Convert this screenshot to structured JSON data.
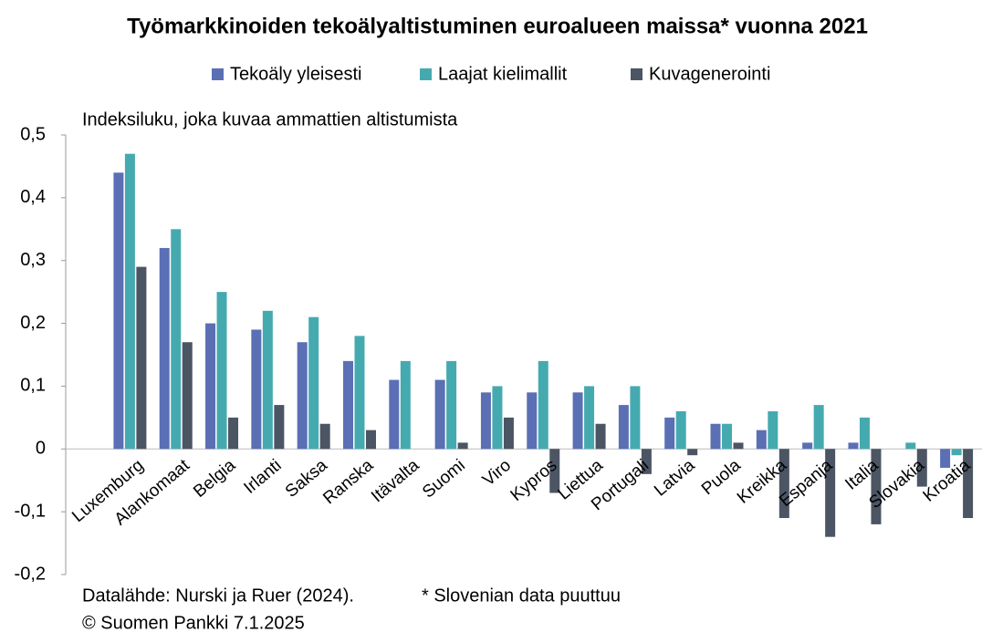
{
  "chart_data": {
    "type": "bar",
    "title": "Työmarkkinoiden tekoälyaltistuminen euroalueen maissa* vuonna 2021",
    "ylabel": "Indeksiluku, joka kuvaa ammattien altistumista",
    "notes": {
      "source": "Datalähde: Nurski ja Ruer (2024).",
      "footnote": "* Slovenian data puuttuu",
      "copyright": "© Suomen Pankki 7.1.2025"
    },
    "categories": [
      "Luxemburg",
      "Alankomaat",
      "Belgia",
      "Irlanti",
      "Saksa",
      "Ranska",
      "Itävalta",
      "Suomi",
      "Viro",
      "Kypros",
      "Liettua",
      "Portugali",
      "Latvia",
      "Puola",
      "Kreikka",
      "Espanja",
      "Italia",
      "Slovakia",
      "Kroatia"
    ],
    "series": [
      {
        "name": "Tekoäly yleisesti",
        "color": "#5b6fb5",
        "values": [
          0.44,
          0.32,
          0.2,
          0.19,
          0.17,
          0.14,
          0.11,
          0.11,
          0.09,
          0.09,
          0.09,
          0.07,
          0.05,
          0.04,
          0.03,
          0.01,
          0.01,
          0.0,
          -0.03
        ]
      },
      {
        "name": "Laajat kielimallit",
        "color": "#45aab0",
        "values": [
          0.47,
          0.35,
          0.25,
          0.22,
          0.21,
          0.18,
          0.14,
          0.14,
          0.1,
          0.14,
          0.1,
          0.1,
          0.06,
          0.04,
          0.06,
          0.07,
          0.05,
          0.01,
          -0.01
        ]
      },
      {
        "name": "Kuvagenerointi",
        "color": "#4c5563",
        "values": [
          0.29,
          0.17,
          0.05,
          0.07,
          0.04,
          0.03,
          0.0,
          0.01,
          0.05,
          -0.07,
          0.04,
          -0.04,
          -0.01,
          0.01,
          -0.11,
          -0.14,
          -0.12,
          -0.06,
          -0.11
        ]
      }
    ],
    "ylim": [
      -0.2,
      0.5
    ],
    "yticks": [
      {
        "value": 0.5,
        "label": "0,5"
      },
      {
        "value": 0.4,
        "label": "0,4"
      },
      {
        "value": 0.3,
        "label": "0,3"
      },
      {
        "value": 0.2,
        "label": "0,2"
      },
      {
        "value": 0.1,
        "label": "0,1"
      },
      0,
      {
        "value": -0.1,
        "label": "-0,1"
      },
      {
        "value": -0.2,
        "label": "-0,2"
      }
    ],
    "grid": false,
    "legend": "top"
  }
}
